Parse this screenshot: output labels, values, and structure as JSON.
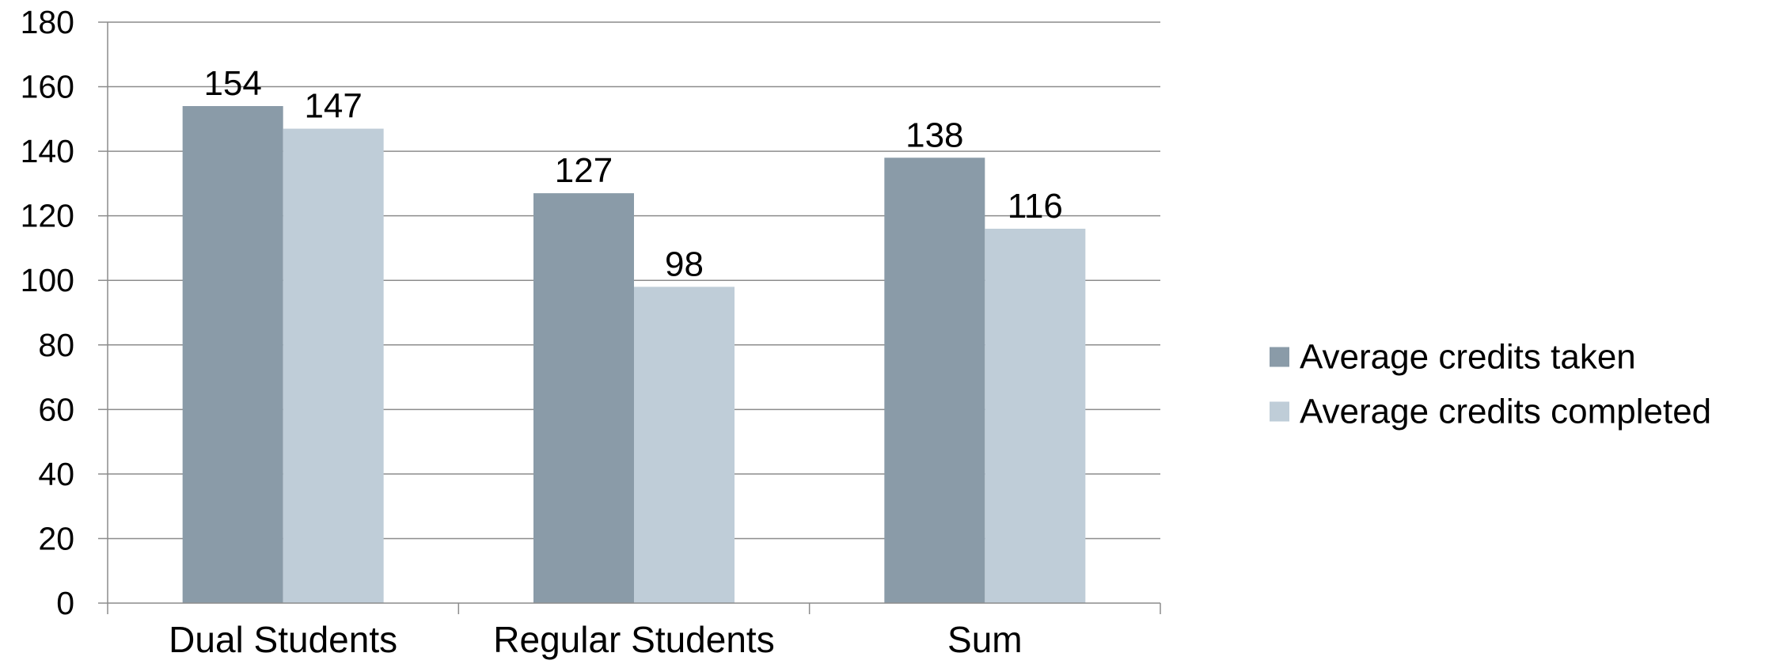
{
  "chart_data": {
    "type": "bar",
    "title": "",
    "xlabel": "",
    "ylabel": "",
    "categories": [
      "Dual Students",
      "Regular Students",
      "Sum"
    ],
    "series": [
      {
        "name": "Average credits taken",
        "values": [
          154,
          127,
          138
        ],
        "color": "#8a9ba8"
      },
      {
        "name": "Average credits completed",
        "values": [
          147,
          98,
          116
        ],
        "color": "#bfcdd8"
      }
    ],
    "ylim": [
      0,
      180
    ],
    "yticks": [
      0,
      20,
      40,
      60,
      80,
      100,
      120,
      140,
      160,
      180
    ],
    "grid": true,
    "legend_position": "right",
    "data_labels": true
  }
}
